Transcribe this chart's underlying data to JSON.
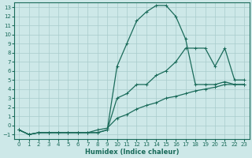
{
  "xlabel": "Humidex (Indice chaleur)",
  "xlim": [
    -0.5,
    23.5
  ],
  "ylim": [
    -1.5,
    13.5
  ],
  "xticks": [
    0,
    1,
    2,
    3,
    4,
    5,
    6,
    7,
    8,
    9,
    10,
    11,
    12,
    13,
    14,
    15,
    16,
    17,
    18,
    19,
    20,
    21,
    22,
    23
  ],
  "yticks": [
    -1,
    0,
    1,
    2,
    3,
    4,
    5,
    6,
    7,
    8,
    9,
    10,
    11,
    12,
    13
  ],
  "background_color": "#cde8e8",
  "grid_color": "#a8cccc",
  "line_color": "#1a6b5a",
  "curve_top_x": [
    0,
    1,
    2,
    3,
    4,
    5,
    6,
    7,
    8,
    9,
    10,
    11,
    12,
    13,
    14,
    15,
    16,
    17,
    18,
    19,
    20,
    21,
    22,
    23
  ],
  "curve_top_y": [
    -0.5,
    -1.0,
    -0.8,
    -0.8,
    -0.8,
    -0.8,
    -0.8,
    -0.8,
    -0.8,
    -0.5,
    6.5,
    9.0,
    11.5,
    12.5,
    13.2,
    13.2,
    12.0,
    9.5,
    4.5,
    4.5,
    4.5,
    4.8,
    4.5,
    4.5
  ],
  "curve_mid_x": [
    0,
    1,
    2,
    3,
    4,
    5,
    6,
    7,
    8,
    9,
    10,
    11,
    12,
    13,
    14,
    15,
    16,
    17,
    18,
    19,
    20,
    21,
    22,
    23
  ],
  "curve_mid_y": [
    -0.5,
    -1.0,
    -0.8,
    -0.8,
    -0.8,
    -0.8,
    -0.8,
    -0.8,
    -0.8,
    -0.5,
    3.0,
    3.5,
    4.5,
    4.5,
    5.5,
    6.0,
    7.0,
    8.5,
    8.5,
    8.5,
    6.5,
    8.5,
    5.0,
    5.0
  ],
  "curve_bot_x": [
    0,
    1,
    2,
    3,
    4,
    5,
    6,
    7,
    8,
    9,
    10,
    11,
    12,
    13,
    14,
    15,
    16,
    17,
    18,
    19,
    20,
    21,
    22,
    23
  ],
  "curve_bot_y": [
    -0.5,
    -1.0,
    -0.8,
    -0.8,
    -0.8,
    -0.8,
    -0.8,
    -0.8,
    -0.5,
    -0.3,
    0.8,
    1.2,
    1.8,
    2.2,
    2.5,
    3.0,
    3.2,
    3.5,
    3.8,
    4.0,
    4.2,
    4.5,
    4.5,
    4.5
  ]
}
